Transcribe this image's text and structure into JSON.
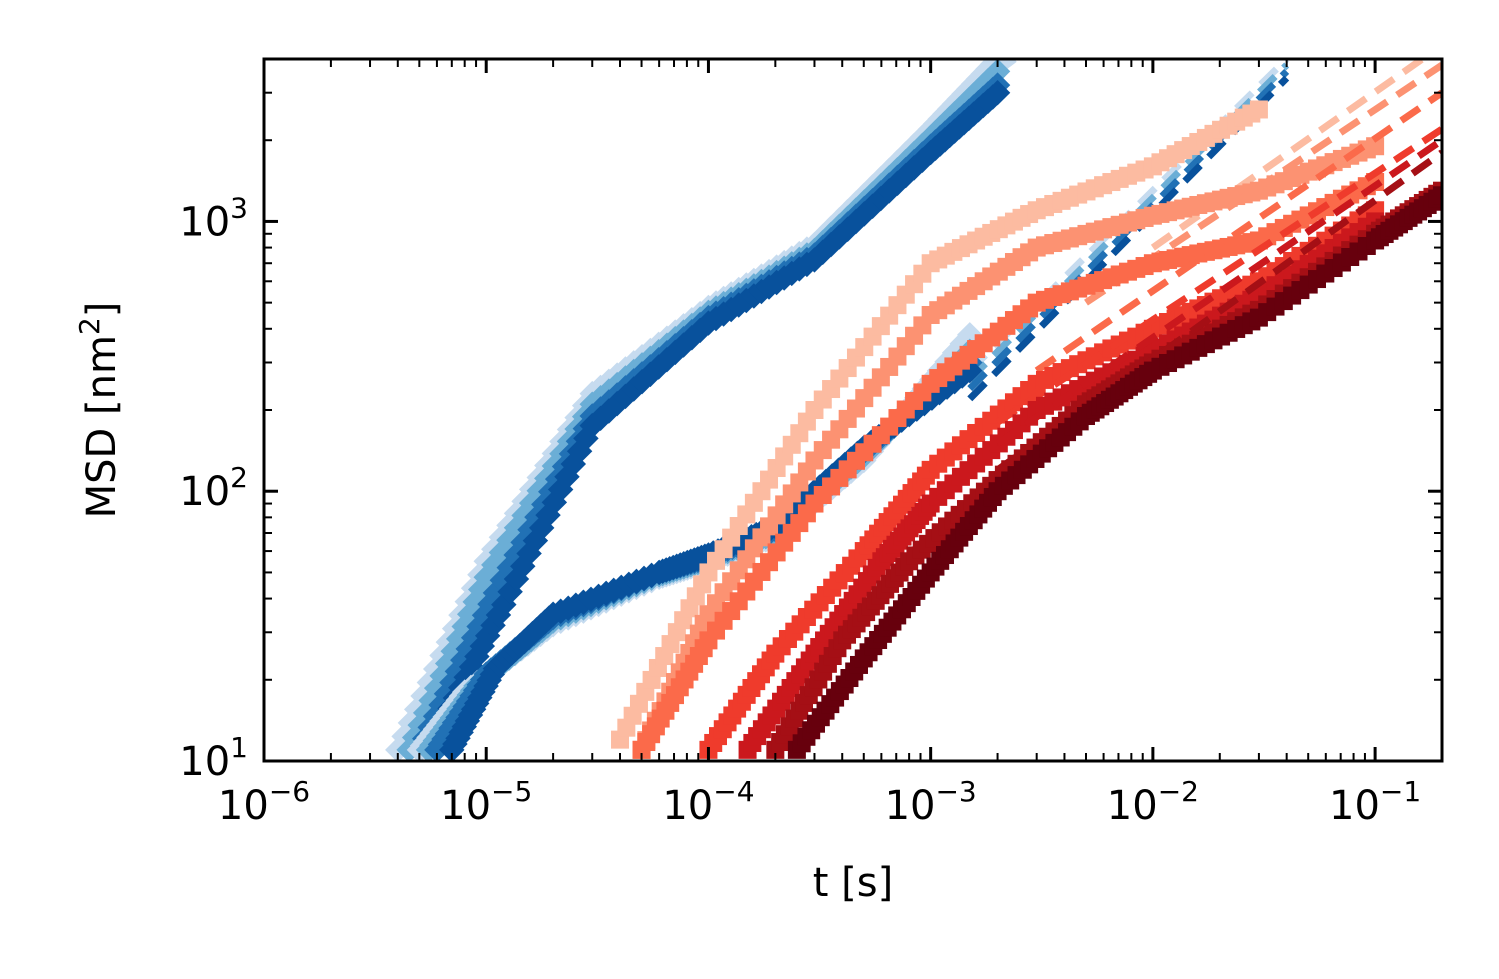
{
  "chart_data": {
    "type": "scatter",
    "title": "",
    "xlabel": "t [s]",
    "ylabel_main": "MSD [nm",
    "ylabel_exp": "2",
    "ylabel_tail": "]",
    "xscale": "log",
    "yscale": "log",
    "xlim": [
      1e-06,
      0.2
    ],
    "ylim": [
      10,
      4000
    ],
    "grid": false,
    "legend": "none",
    "x_ticks": [
      {
        "base": "10",
        "exp": "−6",
        "value": 1e-06
      },
      {
        "base": "10",
        "exp": "−5",
        "value": 1e-05
      },
      {
        "base": "10",
        "exp": "−4",
        "value": 0.0001
      },
      {
        "base": "10",
        "exp": "−3",
        "value": 0.001
      },
      {
        "base": "10",
        "exp": "−2",
        "value": 0.01
      },
      {
        "base": "10",
        "exp": "−1",
        "value": 0.1
      }
    ],
    "y_ticks": [
      {
        "base": "10",
        "exp": "1",
        "value": 10
      },
      {
        "base": "10",
        "exp": "2",
        "value": 100
      },
      {
        "base": "10",
        "exp": "3",
        "value": 1000
      }
    ],
    "series": [
      {
        "group": "blue-upper",
        "marker": "diamond",
        "color": "#c6dbef",
        "x": [
          4e-06,
          1e-05,
          3e-05,
          0.0001,
          0.0003,
          0.001,
          0.002
        ],
        "y": [
          11,
          55,
          230,
          480,
          820,
          2200,
          4000
        ],
        "fit": {
          "x": [
            0.0015,
            0.004
          ],
          "y": [
            3000,
            5500
          ]
        }
      },
      {
        "group": "blue-upper",
        "marker": "diamond",
        "color": "#6baed6",
        "x": [
          4.5e-06,
          1e-05,
          3e-05,
          0.0001,
          0.0003,
          0.001,
          0.002
        ],
        "y": [
          11,
          48,
          210,
          460,
          780,
          2050,
          3600
        ],
        "fit": null
      },
      {
        "group": "blue-upper",
        "marker": "diamond",
        "color": "#2171b5",
        "x": [
          5e-06,
          1.1e-05,
          3e-05,
          0.0001,
          0.0003,
          0.001,
          0.002
        ],
        "y": [
          11,
          42,
          190,
          440,
          750,
          1900,
          3200
        ],
        "fit": null
      },
      {
        "group": "blue-upper",
        "marker": "diamond",
        "color": "#08519c",
        "x": [
          5.5e-06,
          1.2e-05,
          3e-05,
          0.0001,
          0.0003,
          0.001,
          0.002
        ],
        "y": [
          11,
          38,
          175,
          420,
          720,
          1800,
          3000
        ],
        "fit": null
      },
      {
        "group": "blue-lower",
        "marker": "diamond",
        "color": "#c6dbef",
        "x": [
          5e-06,
          8e-06,
          2e-05,
          6e-05,
          0.0001,
          0.0002,
          0.0005,
          0.0015
        ],
        "y": [
          11,
          18,
          32,
          48,
          55,
          68,
          130,
          380
        ],
        "fit": {
          "x": [
            0.0015,
            0.04
          ],
          "y": [
            280,
            4000
          ]
        }
      },
      {
        "group": "blue-lower",
        "marker": "diamond",
        "color": "#6baed6",
        "x": [
          5.5e-06,
          9e-06,
          2e-05,
          6e-05,
          0.0001,
          0.0002,
          0.0005,
          0.0015
        ],
        "y": [
          11,
          19,
          33,
          49,
          56,
          70,
          135,
          330
        ],
        "fit": {
          "x": [
            0.0015,
            0.04
          ],
          "y": [
            260,
            3800
          ]
        }
      },
      {
        "group": "blue-lower",
        "marker": "diamond",
        "color": "#2171b5",
        "x": [
          6e-06,
          1e-05,
          2e-05,
          6e-05,
          0.0001,
          0.0002,
          0.0005,
          0.0015
        ],
        "y": [
          11,
          21,
          34,
          50,
          57,
          72,
          140,
          300
        ],
        "fit": {
          "x": [
            0.0015,
            0.04
          ],
          "y": [
            240,
            3600
          ]
        }
      },
      {
        "group": "blue-lower",
        "marker": "diamond",
        "color": "#08519c",
        "x": [
          7e-06,
          1.1e-05,
          2e-05,
          6e-05,
          0.0001,
          0.0002,
          0.0005,
          0.0015
        ],
        "y": [
          11,
          22,
          35,
          50,
          58,
          74,
          145,
          280
        ],
        "fit": {
          "x": [
            0.0015,
            0.04
          ],
          "y": [
            220,
            3400
          ]
        }
      },
      {
        "group": "red",
        "marker": "square",
        "color": "#fcbba1",
        "x": [
          4e-05,
          0.0001,
          0.0003,
          0.001,
          0.003,
          0.01,
          0.03
        ],
        "y": [
          12,
          50,
          200,
          700,
          1100,
          1600,
          2600
        ],
        "fit": {
          "x": [
            0.01,
            0.2
          ],
          "y": [
            800,
            4500
          ]
        }
      },
      {
        "group": "red",
        "marker": "square",
        "color": "#fc9272",
        "x": [
          5e-05,
          0.0001,
          0.0003,
          0.001,
          0.003,
          0.01,
          0.03,
          0.1
        ],
        "y": [
          11,
          35,
          130,
          450,
          800,
          1050,
          1300,
          1900
        ],
        "fit": {
          "x": [
            0.005,
            0.2
          ],
          "y": [
            500,
            3800
          ]
        }
      },
      {
        "group": "red",
        "marker": "square",
        "color": "#fb6a4a",
        "x": [
          5e-05,
          0.0001,
          0.0003,
          0.001,
          0.003,
          0.01,
          0.03,
          0.1
        ],
        "y": [
          11,
          28,
          90,
          250,
          500,
          700,
          850,
          1400
        ],
        "fit": {
          "x": [
            0.003,
            0.2
          ],
          "y": [
            280,
            3000
          ]
        }
      },
      {
        "group": "red",
        "marker": "square",
        "color": "#ef3b2c",
        "x": [
          0.0001,
          0.0002,
          0.0005,
          0.001,
          0.003,
          0.01,
          0.03,
          0.1
        ],
        "y": [
          11,
          25,
          60,
          120,
          250,
          400,
          600,
          1100
        ],
        "fit": {
          "x": [
            0.002,
            0.2
          ],
          "y": [
            180,
            2200
          ]
        }
      },
      {
        "group": "red",
        "marker": "square",
        "color": "#cb181d",
        "x": [
          0.00015,
          0.0003,
          0.0006,
          0.001,
          0.003,
          0.01,
          0.03,
          0.1
        ],
        "y": [
          11,
          25,
          55,
          90,
          200,
          330,
          530,
          1000
        ],
        "fit": {
          "x": [
            0.002,
            0.2
          ],
          "y": [
            150,
            2000
          ]
        }
      },
      {
        "group": "red",
        "marker": "square",
        "color": "#a50f15",
        "x": [
          0.0002,
          0.0004,
          0.0008,
          0.002,
          0.005,
          0.01,
          0.03,
          0.1,
          0.2
        ],
        "y": [
          11,
          28,
          55,
          110,
          210,
          300,
          470,
          900,
          1300
        ],
        "fit": {
          "x": [
            0.002,
            0.2
          ],
          "y": [
            120,
            1800
          ]
        }
      },
      {
        "group": "red",
        "marker": "square",
        "color": "#67000d",
        "x": [
          0.00025,
          0.0005,
          0.001,
          0.002,
          0.005,
          0.01,
          0.03,
          0.1,
          0.2
        ],
        "y": [
          11,
          24,
          50,
          100,
          190,
          280,
          440,
          850,
          1250
        ],
        "fit": null
      }
    ]
  }
}
